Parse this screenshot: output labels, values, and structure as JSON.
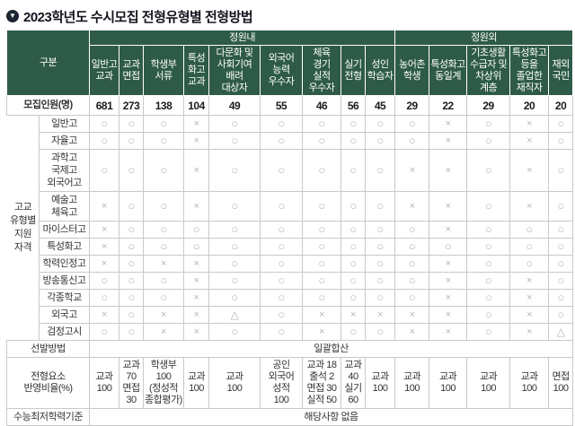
{
  "title": "2023학년도 수시모집 전형유형별 전형방법",
  "colors": {
    "header_green": "#2e5b48",
    "border_gray": "#c9c9c9",
    "mark_gray": "#b4b4b4",
    "title_dark": "#14141e"
  },
  "table": {
    "corner_label": "구분",
    "group_headers": [
      {
        "label": "정원내",
        "span": 9
      },
      {
        "label": "정원외",
        "span": 5
      }
    ],
    "columns": [
      "일반고\n교과",
      "교과\n면접",
      "학생부\n서류",
      "특성\n화고\n교과",
      "다문화 및\n사회기여\n배려\n대상자",
      "외국어\n능력\n우수자",
      "체육\n경기\n실적\n우수자",
      "실기\n전형",
      "성인\n학습자",
      "농어촌\n학생",
      "특성화고\n동일계",
      "기초생활\n수급자 및\n차상위\n계층",
      "특성화고\n등을\n졸업한\n재직자",
      "재외\n국민"
    ],
    "quota_row": {
      "label": "모집인원(명)",
      "values": [
        "681",
        "273",
        "138",
        "104",
        "49",
        "55",
        "46",
        "56",
        "45",
        "29",
        "22",
        "29",
        "20",
        "20"
      ]
    },
    "eligibility": {
      "group_label": "고교\n유형별\n지원\n자격",
      "rows": [
        {
          "label": "일반고",
          "marks": [
            "○",
            "○",
            "○",
            "×",
            "○",
            "○",
            "○",
            "○",
            "○",
            "○",
            "×",
            "○",
            "×",
            "○"
          ]
        },
        {
          "label": "자율고",
          "marks": [
            "○",
            "○",
            "○",
            "×",
            "○",
            "○",
            "○",
            "○",
            "○",
            "○",
            "×",
            "○",
            "×",
            "○"
          ]
        },
        {
          "label": "과학고\n국제고\n외국어고",
          "marks": [
            "○",
            "○",
            "○",
            "×",
            "○",
            "○",
            "○",
            "○",
            "○",
            "×",
            "×",
            "○",
            "×",
            "○"
          ]
        },
        {
          "label": "예술고\n체육고",
          "marks": [
            "×",
            "○",
            "○",
            "×",
            "○",
            "○",
            "○",
            "○",
            "○",
            "×",
            "×",
            "○",
            "×",
            "○"
          ]
        },
        {
          "label": "마이스터고",
          "marks": [
            "×",
            "○",
            "○",
            "○",
            "○",
            "○",
            "○",
            "○",
            "○",
            "○",
            "×",
            "○",
            "○",
            "○"
          ]
        },
        {
          "label": "특성화고",
          "marks": [
            "×",
            "○",
            "○",
            "○",
            "○",
            "○",
            "○",
            "○",
            "○",
            "○",
            "○",
            "○",
            "○",
            "○"
          ]
        },
        {
          "label": "학력인정고",
          "marks": [
            "×",
            "○",
            "×",
            "×",
            "○",
            "○",
            "○",
            "○",
            "○",
            "○",
            "×",
            "○",
            "○",
            "○"
          ]
        },
        {
          "label": "방송통신고",
          "marks": [
            "○",
            "○",
            "○",
            "×",
            "○",
            "○",
            "○",
            "○",
            "○",
            "○",
            "×",
            "○",
            "×",
            "○"
          ]
        },
        {
          "label": "각종학교",
          "marks": [
            "○",
            "○",
            "○",
            "×",
            "○",
            "○",
            "○",
            "○",
            "○",
            "○",
            "×",
            "○",
            "×",
            "○"
          ]
        },
        {
          "label": "외국고",
          "marks": [
            "×",
            "○",
            "×",
            "×",
            "△",
            "○",
            "×",
            "×",
            "×",
            "×",
            "×",
            "○",
            "×",
            "○"
          ]
        },
        {
          "label": "검정고시",
          "marks": [
            "○",
            "○",
            "×",
            "×",
            "○",
            "○",
            "×",
            "○",
            "○",
            "×",
            "×",
            "○",
            "×",
            "△"
          ]
        }
      ]
    },
    "selection_row": {
      "label": "선발방법",
      "value": "일괄합산"
    },
    "elements_row": {
      "label": "전형요소\n반영비율(%)",
      "values": [
        "교과\n100",
        "교과\n70\n면접\n30",
        "학생부\n100\n(정성적\n종합평가)",
        "교과\n100",
        "교과\n100",
        "공인\n외국어\n성적\n100",
        "교과 18\n출석 2\n면접 30\n실적 50",
        "교과\n40\n실기\n60",
        "교과\n100",
        "교과\n100",
        "교과\n100",
        "교과\n100",
        "교과\n100",
        "면접\n100"
      ]
    },
    "csat_row": {
      "label": "수능최저학력기준",
      "value": "해당사항 없음"
    }
  }
}
